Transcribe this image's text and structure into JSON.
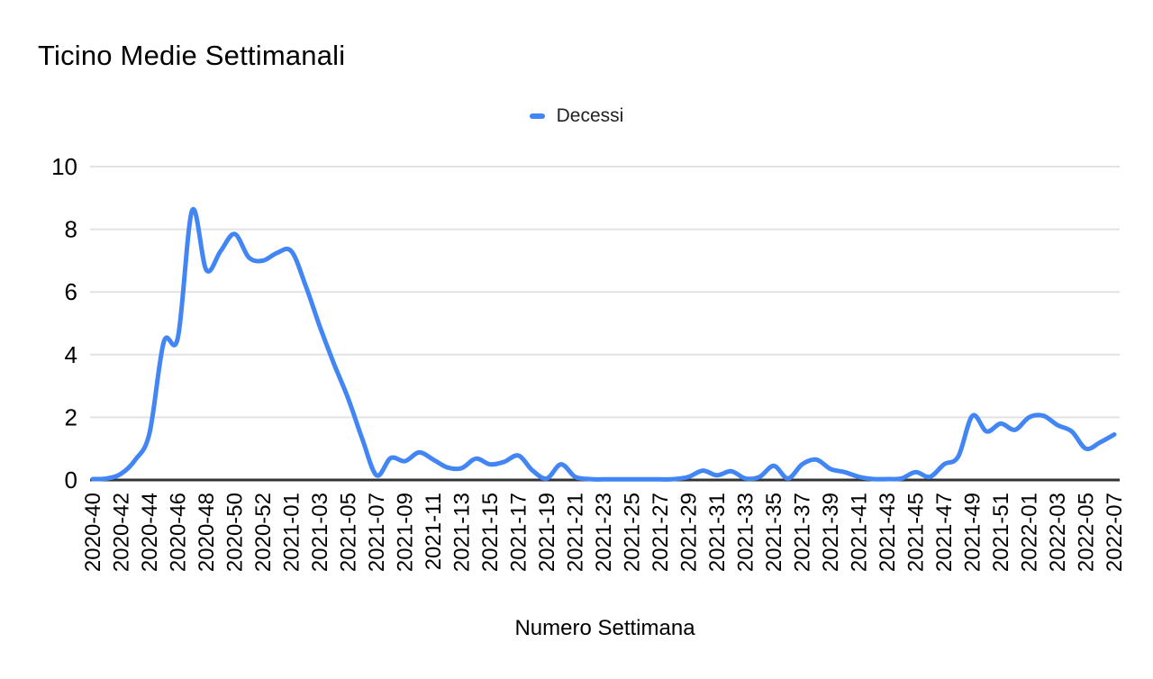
{
  "page": {
    "background": "#ffffff"
  },
  "chart": {
    "title": "Ticino Medie Settimanali",
    "xlabel": "Numero Settimana",
    "legend": [
      {
        "label": "Decessi",
        "color": "#4285f4"
      }
    ]
  },
  "colors": {
    "line": "#4285f4",
    "gridline": "#e2e2e2",
    "axis_line": "#333333",
    "text": "#000000",
    "legend_text": "#202124"
  },
  "chart_data": {
    "type": "line",
    "title": "Ticino Medie Settimanali",
    "xlabel": "Numero Settimana",
    "ylabel": "",
    "series_name": "Decessi",
    "line_color": "#4285f4",
    "smooth": true,
    "grid": true,
    "legend_position": "top-center",
    "ylim": [
      0,
      10
    ],
    "yticks": [
      0,
      2,
      4,
      6,
      8,
      10
    ],
    "x_tick_step": 2,
    "categories": [
      "2020-40",
      "2020-41",
      "2020-42",
      "2020-43",
      "2020-44",
      "2020-45",
      "2020-46",
      "2020-47",
      "2020-48",
      "2020-49",
      "2020-50",
      "2020-51",
      "2020-52",
      "2020-53",
      "2021-01",
      "2021-02",
      "2021-03",
      "2021-04",
      "2021-05",
      "2021-06",
      "2021-07",
      "2021-08",
      "2021-09",
      "2021-10",
      "2021-11",
      "2021-12",
      "2021-13",
      "2021-14",
      "2021-15",
      "2021-16",
      "2021-17",
      "2021-18",
      "2021-19",
      "2021-20",
      "2021-21",
      "2021-22",
      "2021-23",
      "2021-24",
      "2021-25",
      "2021-26",
      "2021-27",
      "2021-28",
      "2021-29",
      "2021-30",
      "2021-31",
      "2021-32",
      "2021-33",
      "2021-34",
      "2021-35",
      "2021-36",
      "2021-37",
      "2021-38",
      "2021-39",
      "2021-40",
      "2021-41",
      "2021-42",
      "2021-43",
      "2021-44",
      "2021-45",
      "2021-46",
      "2021-47",
      "2021-48",
      "2021-49",
      "2021-50",
      "2021-51",
      "2021-52",
      "2022-01",
      "2022-02",
      "2022-03",
      "2022-04",
      "2022-05",
      "2022-06",
      "2022-07"
    ],
    "values": [
      0.03,
      0.05,
      0.2,
      0.65,
      1.5,
      4.4,
      4.55,
      8.6,
      6.7,
      7.3,
      7.85,
      7.1,
      7.0,
      7.25,
      7.3,
      6.2,
      4.9,
      3.7,
      2.6,
      1.3,
      0.15,
      0.7,
      0.6,
      0.88,
      0.65,
      0.4,
      0.38,
      0.68,
      0.5,
      0.58,
      0.78,
      0.3,
      0.05,
      0.5,
      0.1,
      0.03,
      0.02,
      0.02,
      0.02,
      0.02,
      0.02,
      0.03,
      0.1,
      0.3,
      0.15,
      0.28,
      0.05,
      0.1,
      0.45,
      0.05,
      0.5,
      0.65,
      0.35,
      0.25,
      0.1,
      0.03,
      0.03,
      0.05,
      0.25,
      0.1,
      0.5,
      0.75,
      2.05,
      1.55,
      1.8,
      1.6,
      2.0,
      2.05,
      1.75,
      1.55,
      1.0,
      1.2,
      1.45
    ]
  }
}
